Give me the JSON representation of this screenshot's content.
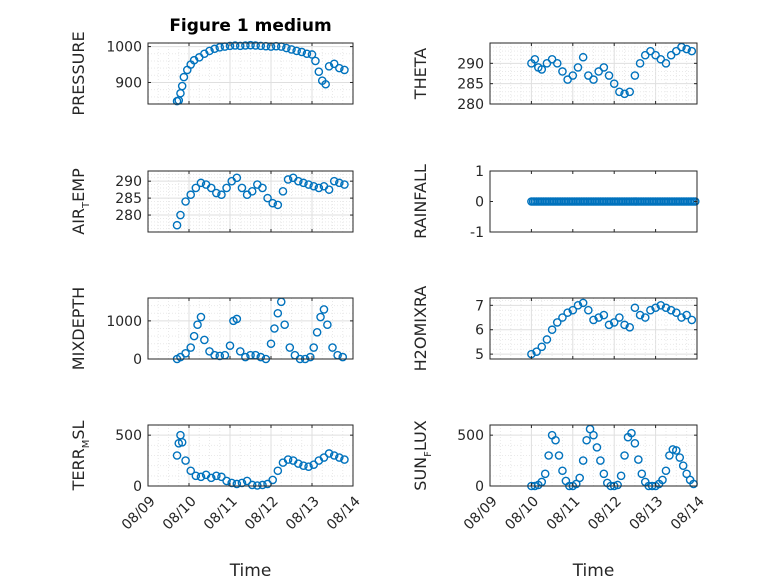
{
  "colors": {
    "marker": "#0072BD",
    "grid": "#e6e6e6",
    "axis": "#262626"
  },
  "chart_data": [
    {
      "type": "scatter",
      "title": "Figure 1 medium",
      "xlabel": "",
      "ylabel": "PRESSURE",
      "ylim": [
        840,
        1010
      ],
      "yticks": [
        900,
        1000
      ],
      "grid": true,
      "series": [
        {
          "x": [
            "2019-08-09T17:00",
            "2019-08-09T18:00",
            "2019-08-09T19:00",
            "2019-08-09T20:00",
            "2019-08-09T21:00",
            "2019-08-09T23:00",
            "2019-08-10T01:00",
            "2019-08-10T03:00",
            "2019-08-10T06:00",
            "2019-08-10T09:00",
            "2019-08-10T12:00",
            "2019-08-10T15:00",
            "2019-08-10T18:00",
            "2019-08-10T21:00",
            "2019-08-11T00:00",
            "2019-08-11T03:00",
            "2019-08-11T06:00",
            "2019-08-11T09:00",
            "2019-08-11T12:00",
            "2019-08-11T15:00",
            "2019-08-11T18:00",
            "2019-08-11T21:00",
            "2019-08-12T00:00",
            "2019-08-12T03:00",
            "2019-08-12T06:00",
            "2019-08-12T09:00",
            "2019-08-12T12:00",
            "2019-08-12T15:00",
            "2019-08-12T18:00",
            "2019-08-12T21:00",
            "2019-08-13T00:00",
            "2019-08-13T02:00",
            "2019-08-13T04:00",
            "2019-08-13T06:00",
            "2019-08-13T08:00",
            "2019-08-13T10:00",
            "2019-08-13T13:00",
            "2019-08-13T16:00",
            "2019-08-13T19:00"
          ],
          "y": [
            848,
            850,
            870,
            890,
            915,
            935,
            950,
            962,
            970,
            980,
            988,
            994,
            998,
            1000,
            1002,
            1003,
            1002,
            1003,
            1004,
            1003,
            1002,
            1001,
            1000,
            1001,
            1000,
            996,
            992,
            988,
            985,
            980,
            978,
            960,
            930,
            905,
            895,
            945,
            952,
            940,
            935
          ]
        }
      ]
    },
    {
      "type": "scatter",
      "xlabel": "",
      "ylabel": "THETA",
      "ylim": [
        280,
        295
      ],
      "yticks": [
        280,
        285,
        290
      ],
      "grid": true,
      "series": [
        {
          "x": [
            "2019-08-10T00:00",
            "2019-08-10T02:00",
            "2019-08-10T04:00",
            "2019-08-10T06:00",
            "2019-08-10T09:00",
            "2019-08-10T12:00",
            "2019-08-10T15:00",
            "2019-08-10T18:00",
            "2019-08-10T21:00",
            "2019-08-11T00:00",
            "2019-08-11T03:00",
            "2019-08-11T06:00",
            "2019-08-11T09:00",
            "2019-08-11T12:00",
            "2019-08-11T15:00",
            "2019-08-11T18:00",
            "2019-08-11T21:00",
            "2019-08-12T00:00",
            "2019-08-12T03:00",
            "2019-08-12T06:00",
            "2019-08-12T09:00",
            "2019-08-12T12:00",
            "2019-08-12T15:00",
            "2019-08-12T18:00",
            "2019-08-12T21:00",
            "2019-08-13T00:00",
            "2019-08-13T03:00",
            "2019-08-13T06:00",
            "2019-08-13T09:00",
            "2019-08-13T12:00",
            "2019-08-13T15:00",
            "2019-08-13T18:00",
            "2019-08-13T21:00"
          ],
          "y": [
            290,
            291,
            289,
            288.5,
            290,
            291,
            290,
            288,
            286,
            287,
            289,
            291.5,
            287,
            286,
            288,
            289,
            287,
            285,
            283,
            282.5,
            283,
            287,
            290,
            292,
            293,
            292,
            291,
            290,
            292,
            293,
            294,
            293.5,
            293
          ]
        }
      ]
    },
    {
      "type": "scatter",
      "xlabel": "",
      "ylabel": "AIR_TEMP",
      "ylim": [
        275,
        293
      ],
      "yticks": [
        280,
        285,
        290
      ],
      "grid": true,
      "series": [
        {
          "x": [
            "2019-08-09T17:00",
            "2019-08-09T19:00",
            "2019-08-09T22:00",
            "2019-08-10T01:00",
            "2019-08-10T04:00",
            "2019-08-10T07:00",
            "2019-08-10T10:00",
            "2019-08-10T13:00",
            "2019-08-10T16:00",
            "2019-08-10T19:00",
            "2019-08-10T22:00",
            "2019-08-11T01:00",
            "2019-08-11T04:00",
            "2019-08-11T07:00",
            "2019-08-11T10:00",
            "2019-08-11T13:00",
            "2019-08-11T16:00",
            "2019-08-11T19:00",
            "2019-08-11T22:00",
            "2019-08-12T01:00",
            "2019-08-12T04:00",
            "2019-08-12T07:00",
            "2019-08-12T10:00",
            "2019-08-12T13:00",
            "2019-08-12T16:00",
            "2019-08-12T19:00",
            "2019-08-12T22:00",
            "2019-08-13T01:00",
            "2019-08-13T04:00",
            "2019-08-13T07:00",
            "2019-08-13T10:00",
            "2019-08-13T13:00",
            "2019-08-13T16:00",
            "2019-08-13T19:00"
          ],
          "y": [
            277,
            280,
            284,
            286,
            288,
            289.5,
            289,
            288,
            286.5,
            286,
            288,
            290,
            291,
            288,
            286,
            287,
            289,
            288,
            285,
            283.5,
            283,
            287,
            290.5,
            291,
            290,
            289.5,
            289,
            288.5,
            288,
            288.5,
            287.5,
            290,
            289.5,
            289
          ]
        }
      ]
    },
    {
      "type": "scatter",
      "xlabel": "",
      "ylabel": "RAINFALL",
      "ylim": [
        -1,
        1
      ],
      "yticks": [
        -1,
        0,
        1
      ],
      "grid": false,
      "series": [
        {
          "x_range": [
            "2019-08-10T00:00",
            "2019-08-13T23:00"
          ],
          "y": 0
        }
      ]
    },
    {
      "type": "scatter",
      "xlabel": "",
      "ylabel": "MIXDEPTH",
      "ylim": [
        0,
        1600
      ],
      "yticks": [
        0,
        1000
      ],
      "grid": true,
      "series": [
        {
          "x": [
            "2019-08-09T17:00",
            "2019-08-09T19:00",
            "2019-08-09T22:00",
            "2019-08-10T01:00",
            "2019-08-10T03:00",
            "2019-08-10T05:00",
            "2019-08-10T07:00",
            "2019-08-10T09:00",
            "2019-08-10T12:00",
            "2019-08-10T15:00",
            "2019-08-10T18:00",
            "2019-08-10T21:00",
            "2019-08-11T00:00",
            "2019-08-11T02:00",
            "2019-08-11T04:00",
            "2019-08-11T06:00",
            "2019-08-11T09:00",
            "2019-08-11T12:00",
            "2019-08-11T15:00",
            "2019-08-11T18:00",
            "2019-08-11T21:00",
            "2019-08-12T00:00",
            "2019-08-12T02:00",
            "2019-08-12T04:00",
            "2019-08-12T06:00",
            "2019-08-12T08:00",
            "2019-08-12T11:00",
            "2019-08-12T14:00",
            "2019-08-12T17:00",
            "2019-08-12T20:00",
            "2019-08-12T23:00",
            "2019-08-13T01:00",
            "2019-08-13T03:00",
            "2019-08-13T05:00",
            "2019-08-13T07:00",
            "2019-08-13T09:00",
            "2019-08-13T12:00",
            "2019-08-13T15:00",
            "2019-08-13T18:00"
          ],
          "y": [
            0,
            50,
            150,
            300,
            600,
            900,
            1100,
            500,
            200,
            100,
            80,
            100,
            350,
            1000,
            1050,
            200,
            50,
            100,
            100,
            50,
            0,
            400,
            800,
            1200,
            1500,
            900,
            300,
            100,
            0,
            0,
            50,
            300,
            700,
            1100,
            1300,
            900,
            300,
            100,
            50
          ]
        }
      ]
    },
    {
      "type": "scatter",
      "xlabel": "",
      "ylabel": "H2OMIXRA",
      "ylim": [
        4.8,
        7.3
      ],
      "yticks": [
        5,
        6,
        7
      ],
      "grid": true,
      "series": [
        {
          "x": [
            "2019-08-10T00:00",
            "2019-08-10T03:00",
            "2019-08-10T06:00",
            "2019-08-10T09:00",
            "2019-08-10T12:00",
            "2019-08-10T15:00",
            "2019-08-10T18:00",
            "2019-08-10T21:00",
            "2019-08-11T00:00",
            "2019-08-11T03:00",
            "2019-08-11T06:00",
            "2019-08-11T09:00",
            "2019-08-11T12:00",
            "2019-08-11T15:00",
            "2019-08-11T18:00",
            "2019-08-11T21:00",
            "2019-08-12T00:00",
            "2019-08-12T03:00",
            "2019-08-12T06:00",
            "2019-08-12T09:00",
            "2019-08-12T12:00",
            "2019-08-12T15:00",
            "2019-08-12T18:00",
            "2019-08-12T21:00",
            "2019-08-13T00:00",
            "2019-08-13T03:00",
            "2019-08-13T06:00",
            "2019-08-13T09:00",
            "2019-08-13T12:00",
            "2019-08-13T15:00",
            "2019-08-13T18:00",
            "2019-08-13T21:00"
          ],
          "y": [
            5.0,
            5.1,
            5.3,
            5.6,
            6.0,
            6.3,
            6.5,
            6.7,
            6.8,
            7.0,
            7.1,
            6.8,
            6.4,
            6.5,
            6.6,
            6.2,
            6.3,
            6.5,
            6.2,
            6.1,
            6.9,
            6.6,
            6.5,
            6.8,
            6.9,
            7.0,
            6.9,
            6.8,
            6.7,
            6.5,
            6.6,
            6.4
          ]
        }
      ]
    },
    {
      "type": "scatter",
      "xlabel": "Time",
      "ylabel": "TERR_MSL",
      "ylim": [
        0,
        600
      ],
      "yticks": [
        0,
        500
      ],
      "grid": true,
      "xticks": [
        "08/09",
        "08/10",
        "08/11",
        "08/12",
        "08/13",
        "08/14"
      ],
      "series": [
        {
          "x": [
            "2019-08-09T17:00",
            "2019-08-09T18:00",
            "2019-08-09T19:00",
            "2019-08-09T20:00",
            "2019-08-09T22:00",
            "2019-08-10T01:00",
            "2019-08-10T04:00",
            "2019-08-10T07:00",
            "2019-08-10T10:00",
            "2019-08-10T13:00",
            "2019-08-10T16:00",
            "2019-08-10T19:00",
            "2019-08-10T22:00",
            "2019-08-11T01:00",
            "2019-08-11T04:00",
            "2019-08-11T07:00",
            "2019-08-11T10:00",
            "2019-08-11T13:00",
            "2019-08-11T16:00",
            "2019-08-11T19:00",
            "2019-08-11T22:00",
            "2019-08-12T01:00",
            "2019-08-12T04:00",
            "2019-08-12T07:00",
            "2019-08-12T10:00",
            "2019-08-12T13:00",
            "2019-08-12T16:00",
            "2019-08-12T19:00",
            "2019-08-12T22:00",
            "2019-08-13T01:00",
            "2019-08-13T04:00",
            "2019-08-13T07:00",
            "2019-08-13T10:00",
            "2019-08-13T13:00",
            "2019-08-13T16:00",
            "2019-08-13T19:00"
          ],
          "y": [
            300,
            420,
            500,
            430,
            250,
            150,
            100,
            90,
            110,
            80,
            100,
            90,
            50,
            30,
            20,
            30,
            50,
            10,
            5,
            10,
            20,
            60,
            150,
            230,
            260,
            250,
            220,
            200,
            190,
            210,
            250,
            280,
            320,
            300,
            280,
            260
          ]
        }
      ]
    },
    {
      "type": "scatter",
      "xlabel": "Time",
      "ylabel": "SUN_FLUX",
      "ylim": [
        0,
        600
      ],
      "yticks": [
        0,
        500
      ],
      "grid": true,
      "xticks": [
        "08/09",
        "08/10",
        "08/11",
        "08/12",
        "08/13",
        "08/14"
      ],
      "series": [
        {
          "x": [
            "2019-08-10T00:00",
            "2019-08-10T02:00",
            "2019-08-10T04:00",
            "2019-08-10T06:00",
            "2019-08-10T08:00",
            "2019-08-10T10:00",
            "2019-08-10T12:00",
            "2019-08-10T14:00",
            "2019-08-10T16:00",
            "2019-08-10T18:00",
            "2019-08-10T20:00",
            "2019-08-10T22:00",
            "2019-08-11T00:00",
            "2019-08-11T02:00",
            "2019-08-11T04:00",
            "2019-08-11T06:00",
            "2019-08-11T08:00",
            "2019-08-11T10:00",
            "2019-08-11T12:00",
            "2019-08-11T14:00",
            "2019-08-11T16:00",
            "2019-08-11T18:00",
            "2019-08-11T20:00",
            "2019-08-11T22:00",
            "2019-08-12T00:00",
            "2019-08-12T02:00",
            "2019-08-12T04:00",
            "2019-08-12T06:00",
            "2019-08-12T08:00",
            "2019-08-12T10:00",
            "2019-08-12T12:00",
            "2019-08-12T14:00",
            "2019-08-12T16:00",
            "2019-08-12T18:00",
            "2019-08-12T20:00",
            "2019-08-12T22:00",
            "2019-08-13T00:00",
            "2019-08-13T02:00",
            "2019-08-13T04:00",
            "2019-08-13T06:00",
            "2019-08-13T08:00",
            "2019-08-13T10:00",
            "2019-08-13T12:00",
            "2019-08-13T14:00",
            "2019-08-13T16:00",
            "2019-08-13T18:00",
            "2019-08-13T20:00",
            "2019-08-13T22:00"
          ],
          "y": [
            0,
            0,
            10,
            40,
            120,
            300,
            500,
            450,
            300,
            150,
            50,
            0,
            0,
            20,
            80,
            250,
            450,
            560,
            500,
            380,
            250,
            120,
            30,
            0,
            0,
            10,
            100,
            300,
            480,
            520,
            420,
            260,
            120,
            40,
            0,
            0,
            0,
            20,
            60,
            150,
            300,
            360,
            350,
            280,
            200,
            120,
            60,
            20
          ]
        }
      ]
    }
  ]
}
